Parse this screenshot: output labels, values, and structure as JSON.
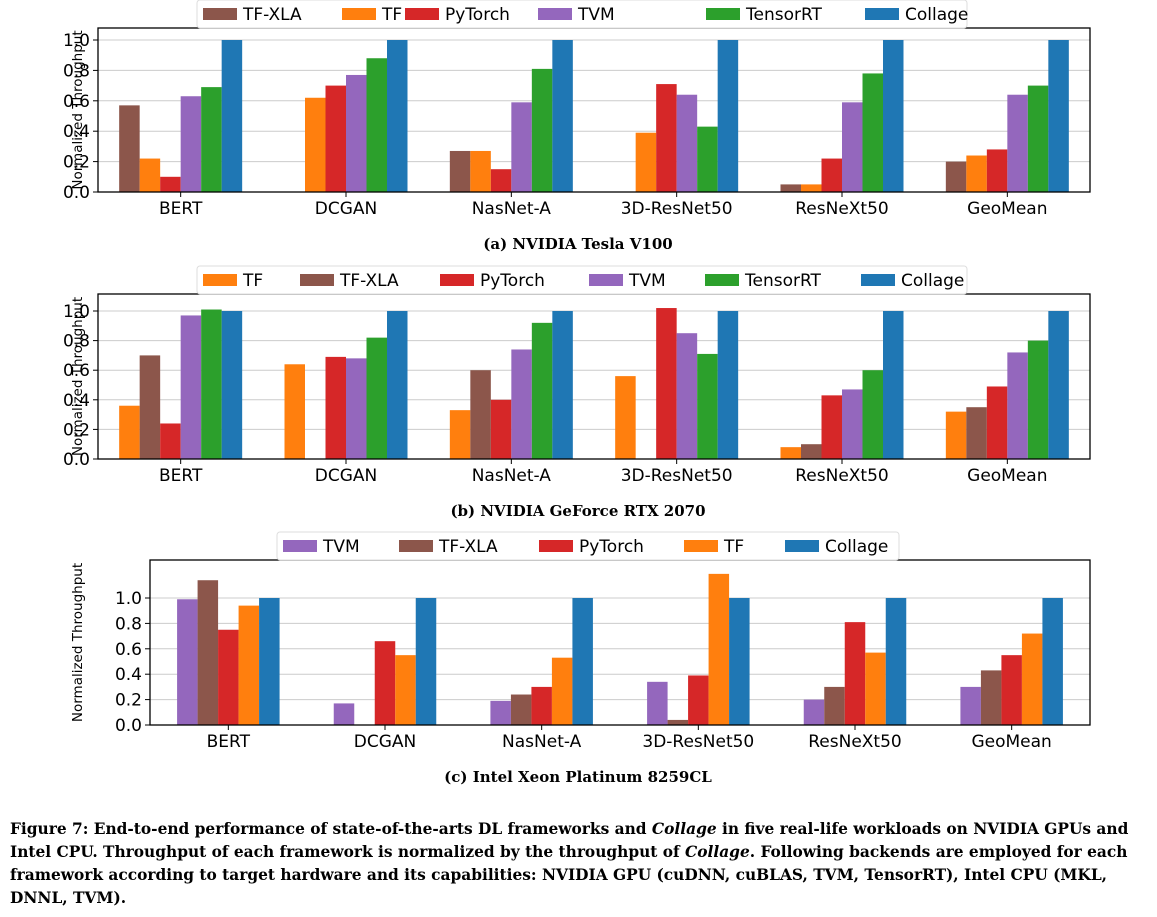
{
  "chart_data": [
    {
      "type": "bar",
      "caption": "(a) NVIDIA Tesla V100",
      "ylabel": "Normalized Throughput",
      "ylim": [
        0,
        1.0
      ],
      "yticks": [
        "0.0",
        "0.2",
        "0.4",
        "0.6",
        "0.8",
        "1.0"
      ],
      "grid": "horizontal",
      "legend_position": "top",
      "categories": [
        "BERT",
        "DCGAN",
        "NasNet-A",
        "3D-ResNet50",
        "ResNeXt50",
        "GeoMean"
      ],
      "series": [
        {
          "name": "TF-XLA",
          "color": "#8c564b",
          "values": [
            0.57,
            null,
            0.27,
            null,
            0.05,
            0.2
          ]
        },
        {
          "name": "TF",
          "color": "#ff7f0e",
          "values": [
            0.22,
            0.62,
            0.27,
            0.39,
            0.05,
            0.24
          ]
        },
        {
          "name": "PyTorch",
          "color": "#d62728",
          "values": [
            0.1,
            0.7,
            0.15,
            0.71,
            0.22,
            0.28
          ]
        },
        {
          "name": "TVM",
          "color": "#9467bd",
          "values": [
            0.63,
            0.77,
            0.59,
            0.64,
            0.59,
            0.64
          ]
        },
        {
          "name": "TensorRT",
          "color": "#2ca02c",
          "values": [
            0.69,
            0.88,
            0.81,
            0.43,
            0.78,
            0.7
          ]
        },
        {
          "name": "Collage",
          "color": "#1f77b4",
          "values": [
            1.0,
            1.0,
            1.0,
            1.0,
            1.0,
            1.0
          ]
        }
      ]
    },
    {
      "type": "bar",
      "caption": "(b) NVIDIA GeForce RTX 2070",
      "ylabel": "Normalized Throughput",
      "ylim": [
        0,
        1.03
      ],
      "yticks": [
        "0.0",
        "0.2",
        "0.4",
        "0.6",
        "0.8",
        "1.0"
      ],
      "grid": "horizontal",
      "legend_position": "top",
      "categories": [
        "BERT",
        "DCGAN",
        "NasNet-A",
        "3D-ResNet50",
        "ResNeXt50",
        "GeoMean"
      ],
      "series": [
        {
          "name": "TF",
          "color": "#ff7f0e",
          "values": [
            0.36,
            0.64,
            0.33,
            0.56,
            0.08,
            0.32
          ]
        },
        {
          "name": "TF-XLA",
          "color": "#8c564b",
          "values": [
            0.7,
            null,
            0.6,
            null,
            0.1,
            0.35
          ]
        },
        {
          "name": "PyTorch",
          "color": "#d62728",
          "values": [
            0.24,
            0.69,
            0.4,
            1.02,
            0.43,
            0.49
          ]
        },
        {
          "name": "TVM",
          "color": "#9467bd",
          "values": [
            0.97,
            0.68,
            0.74,
            0.85,
            0.47,
            0.72
          ]
        },
        {
          "name": "TensorRT",
          "color": "#2ca02c",
          "values": [
            1.01,
            0.82,
            0.92,
            0.71,
            0.6,
            0.8
          ]
        },
        {
          "name": "Collage",
          "color": "#1f77b4",
          "values": [
            1.0,
            1.0,
            1.0,
            1.0,
            1.0,
            1.0
          ]
        }
      ]
    },
    {
      "type": "bar",
      "caption": "(c) Intel Xeon Platinum 8259CL",
      "ylabel": "Normalized Throughput",
      "ylim": [
        0,
        1.2
      ],
      "yticks": [
        "0.0",
        "0.2",
        "0.4",
        "0.6",
        "0.8",
        "1.0"
      ],
      "grid": "horizontal",
      "legend_position": "top",
      "categories": [
        "BERT",
        "DCGAN",
        "NasNet-A",
        "3D-ResNet50",
        "ResNeXt50",
        "GeoMean"
      ],
      "series": [
        {
          "name": "TVM",
          "color": "#9467bd",
          "values": [
            0.99,
            0.17,
            0.19,
            0.34,
            0.2,
            0.3
          ]
        },
        {
          "name": "TF-XLA",
          "color": "#8c564b",
          "values": [
            1.14,
            null,
            0.24,
            0.04,
            0.3,
            0.43
          ]
        },
        {
          "name": "PyTorch",
          "color": "#d62728",
          "values": [
            0.75,
            0.66,
            0.3,
            0.39,
            0.81,
            0.55
          ]
        },
        {
          "name": "TF",
          "color": "#ff7f0e",
          "values": [
            0.94,
            0.55,
            0.53,
            1.19,
            0.57,
            0.72
          ]
        },
        {
          "name": "Collage",
          "color": "#1f77b4",
          "values": [
            1.0,
            1.0,
            1.0,
            1.0,
            1.0,
            1.0
          ]
        }
      ]
    }
  ],
  "figure_caption": {
    "part1": "Figure 7: End-to-end performance of state-of-the-arts DL frameworks and ",
    "em1": "Collage",
    "part2": " in five real-life workloads on NVIDIA GPUs and Intel CPU. Throughput of each framework is normalized by the throughput of ",
    "em2": "Collage",
    "part3": ". Following backends are employed for each framework according to target hardware and its capabilities: NVIDIA GPU (cuDNN, cuBLAS, TVM, TensorRT), Intel CPU (MKL, DNNL, TVM)."
  }
}
